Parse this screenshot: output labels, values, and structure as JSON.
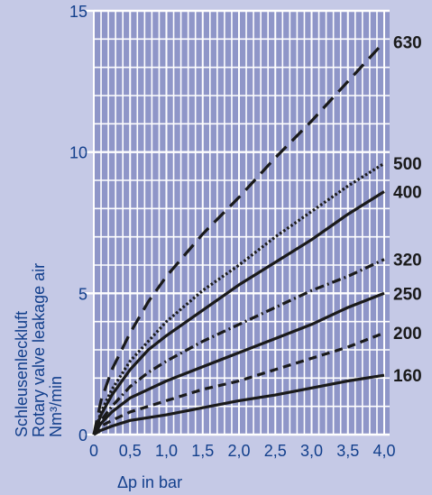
{
  "chart_data": {
    "type": "line",
    "xlabel": "Δp in bar",
    "ylabel_lines": [
      "Schleusenleckluft",
      "Rotary valve leakage air",
      "Nm³/min"
    ],
    "xlim": [
      0,
      4.0
    ],
    "ylim": [
      0,
      15
    ],
    "x_ticks": [
      "0",
      "0,5",
      "1,0",
      "1,5",
      "2,0",
      "2,5",
      "3,0",
      "3,5",
      "4,0"
    ],
    "y_ticks": [
      "0",
      "5",
      "10",
      "15"
    ],
    "grid": true,
    "colors": {
      "background": "#c5c9e6",
      "plot_area": "#8f96c8",
      "grid": "#ffffff",
      "tick_text": "#123f8c",
      "series": "#1a1a1a"
    },
    "series": [
      {
        "name": "630",
        "dash": "long-dash",
        "points": [
          [
            0,
            0
          ],
          [
            0.1,
            1.2
          ],
          [
            0.25,
            2.3
          ],
          [
            0.5,
            3.6
          ],
          [
            0.75,
            4.7
          ],
          [
            1.0,
            5.6
          ],
          [
            1.5,
            7.1
          ],
          [
            2.0,
            8.4
          ],
          [
            2.5,
            9.8
          ],
          [
            3.0,
            11.1
          ],
          [
            3.5,
            12.5
          ],
          [
            4.0,
            13.9
          ]
        ]
      },
      {
        "name": "500",
        "dash": "dotted",
        "points": [
          [
            0,
            0
          ],
          [
            0.1,
            0.8
          ],
          [
            0.25,
            1.6
          ],
          [
            0.5,
            2.6
          ],
          [
            0.75,
            3.3
          ],
          [
            1.0,
            4.0
          ],
          [
            1.5,
            5.1
          ],
          [
            2.0,
            6.0
          ],
          [
            2.5,
            7.0
          ],
          [
            3.0,
            7.9
          ],
          [
            3.5,
            8.8
          ],
          [
            4.0,
            9.6
          ]
        ]
      },
      {
        "name": "400",
        "dash": "solid",
        "points": [
          [
            0,
            0
          ],
          [
            0.1,
            0.7
          ],
          [
            0.25,
            1.4
          ],
          [
            0.5,
            2.3
          ],
          [
            0.75,
            3.0
          ],
          [
            1.0,
            3.5
          ],
          [
            1.5,
            4.4
          ],
          [
            2.0,
            5.3
          ],
          [
            2.5,
            6.1
          ],
          [
            3.0,
            6.9
          ],
          [
            3.5,
            7.8
          ],
          [
            4.0,
            8.6
          ]
        ]
      },
      {
        "name": "320",
        "dash": "dash-dot",
        "points": [
          [
            0,
            0
          ],
          [
            0.1,
            0.5
          ],
          [
            0.25,
            1.0
          ],
          [
            0.5,
            1.7
          ],
          [
            0.75,
            2.2
          ],
          [
            1.0,
            2.6
          ],
          [
            1.5,
            3.3
          ],
          [
            2.0,
            3.9
          ],
          [
            2.5,
            4.5
          ],
          [
            3.0,
            5.1
          ],
          [
            3.5,
            5.6
          ],
          [
            4.0,
            6.2
          ]
        ]
      },
      {
        "name": "250",
        "dash": "solid",
        "points": [
          [
            0,
            0
          ],
          [
            0.1,
            0.4
          ],
          [
            0.25,
            0.8
          ],
          [
            0.5,
            1.3
          ],
          [
            0.75,
            1.6
          ],
          [
            1.0,
            1.9
          ],
          [
            1.5,
            2.4
          ],
          [
            2.0,
            2.9
          ],
          [
            2.5,
            3.4
          ],
          [
            3.0,
            3.9
          ],
          [
            3.5,
            4.5
          ],
          [
            4.0,
            5.0
          ]
        ]
      },
      {
        "name": "200",
        "dash": "short-dash",
        "points": [
          [
            0,
            0
          ],
          [
            0.1,
            0.3
          ],
          [
            0.25,
            0.5
          ],
          [
            0.5,
            0.8
          ],
          [
            0.75,
            1.0
          ],
          [
            1.0,
            1.2
          ],
          [
            1.5,
            1.6
          ],
          [
            2.0,
            1.9
          ],
          [
            2.5,
            2.3
          ],
          [
            3.0,
            2.7
          ],
          [
            3.5,
            3.1
          ],
          [
            4.0,
            3.6
          ]
        ]
      },
      {
        "name": "160",
        "dash": "solid",
        "points": [
          [
            0,
            0
          ],
          [
            0.1,
            0.15
          ],
          [
            0.25,
            0.3
          ],
          [
            0.5,
            0.5
          ],
          [
            0.75,
            0.6
          ],
          [
            1.0,
            0.7
          ],
          [
            1.5,
            0.95
          ],
          [
            2.0,
            1.2
          ],
          [
            2.5,
            1.4
          ],
          [
            3.0,
            1.65
          ],
          [
            3.5,
            1.9
          ],
          [
            4.0,
            2.1
          ]
        ]
      }
    ]
  }
}
